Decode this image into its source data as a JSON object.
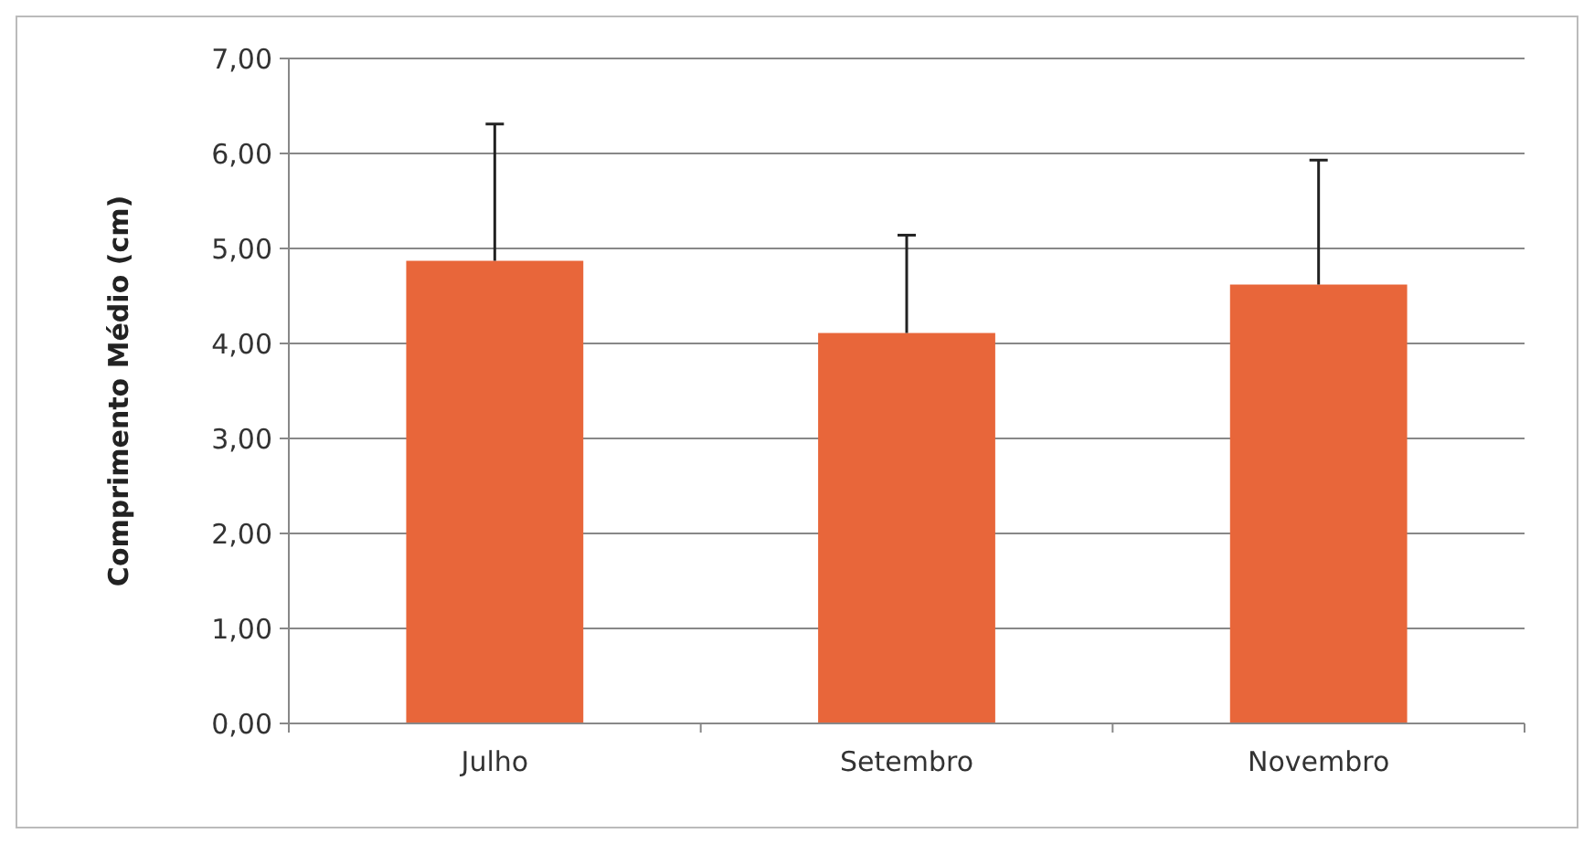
{
  "chart_data": {
    "type": "bar",
    "ylabel": "Comprimento Médio (cm)",
    "categories": [
      "Julho",
      "Setembro",
      "Novembro"
    ],
    "values": [
      4.87,
      4.11,
      4.62
    ],
    "errors": [
      [
        4.87,
        6.31
      ],
      [
        4.11,
        5.14
      ],
      [
        4.62,
        5.93
      ]
    ],
    "color": "#e8663a",
    "ylim": [
      0,
      7
    ],
    "yticks": [
      {
        "value": 0,
        "label": "0,00"
      },
      {
        "value": 1,
        "label": "1,00"
      },
      {
        "value": 2,
        "label": "2,00"
      },
      {
        "value": 3,
        "label": "3,00"
      },
      {
        "value": 4,
        "label": "4,00"
      },
      {
        "value": 5,
        "label": "5,00"
      },
      {
        "value": 6,
        "label": "6,00"
      },
      {
        "value": 7,
        "label": "7,00"
      }
    ],
    "grid": "y"
  }
}
